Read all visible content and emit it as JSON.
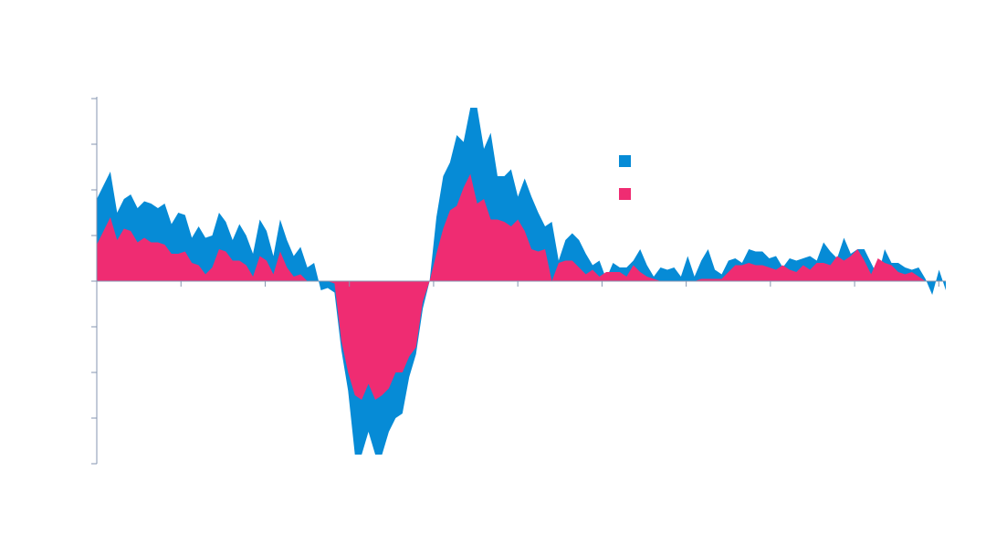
{
  "chart_data": {
    "type": "area",
    "title": "",
    "xlabel": "",
    "ylabel": "",
    "ylim": [
      -4,
      4
    ],
    "yticks": [
      -4,
      -3,
      -2,
      -1,
      0,
      1,
      2,
      3,
      4
    ],
    "xlim": [
      0,
      121
    ],
    "xticks": [
      12,
      24,
      36,
      48,
      60,
      72,
      84,
      96,
      108,
      120
    ],
    "grid": false,
    "legend_position": "top-right",
    "series": [
      {
        "name": "",
        "color": "#068bd6",
        "values": [
          1.8,
          2.1,
          2.4,
          1.5,
          1.8,
          1.9,
          1.6,
          1.75,
          1.7,
          1.6,
          1.7,
          1.25,
          1.5,
          1.45,
          0.95,
          1.2,
          0.95,
          1.0,
          1.5,
          1.3,
          0.9,
          1.25,
          1.0,
          0.6,
          1.35,
          1.1,
          0.55,
          1.35,
          0.9,
          0.55,
          0.75,
          0.3,
          0.4,
          -0.2,
          -0.15,
          -0.25,
          -1.5,
          -2.4,
          -3.8,
          -3.8,
          -3.3,
          -3.8,
          -3.8,
          -3.3,
          -3.0,
          -2.9,
          -2.1,
          -1.6,
          -0.6,
          0.0,
          1.4,
          2.3,
          2.6,
          3.2,
          3.05,
          3.8,
          3.8,
          2.9,
          3.25,
          2.3,
          2.3,
          2.45,
          1.85,
          2.25,
          1.85,
          1.5,
          1.2,
          1.3,
          0.45,
          0.9,
          1.05,
          0.9,
          0.6,
          0.35,
          0.45,
          0.05,
          0.4,
          0.3,
          0.3,
          0.45,
          0.7,
          0.35,
          0.1,
          0.3,
          0.25,
          0.3,
          0.1,
          0.55,
          0.1,
          0.45,
          0.7,
          0.25,
          0.15,
          0.45,
          0.5,
          0.4,
          0.7,
          0.65,
          0.65,
          0.5,
          0.55,
          0.3,
          0.5,
          0.45,
          0.5,
          0.55,
          0.45,
          0.85,
          0.65,
          0.5,
          0.95,
          0.6,
          0.7,
          0.7,
          0.4,
          0.1,
          0.7,
          0.4,
          0.4,
          0.3,
          0.25,
          0.3,
          0.05,
          -0.3,
          0.25,
          -0.2
        ]
      },
      {
        "name": "",
        "color": "#ef2c72",
        "values": [
          0.8,
          1.1,
          1.4,
          0.9,
          1.15,
          1.1,
          0.85,
          0.95,
          0.85,
          0.85,
          0.8,
          0.6,
          0.6,
          0.65,
          0.4,
          0.35,
          0.15,
          0.3,
          0.7,
          0.65,
          0.45,
          0.45,
          0.35,
          0.1,
          0.55,
          0.45,
          0.15,
          0.65,
          0.3,
          0.1,
          0.15,
          0.0,
          0.0,
          0.0,
          0.0,
          -0.05,
          -1.3,
          -2.0,
          -2.5,
          -2.6,
          -2.25,
          -2.6,
          -2.5,
          -2.35,
          -2.0,
          -2.0,
          -1.65,
          -1.45,
          -0.45,
          0.0,
          0.6,
          1.15,
          1.55,
          1.65,
          2.05,
          2.35,
          1.7,
          1.8,
          1.35,
          1.35,
          1.3,
          1.2,
          1.35,
          1.1,
          0.7,
          0.65,
          0.7,
          0.0,
          0.4,
          0.45,
          0.45,
          0.3,
          0.15,
          0.25,
          0.1,
          0.2,
          0.2,
          0.2,
          0.1,
          0.35,
          0.2,
          0.1,
          0.05,
          0.0,
          0.0,
          0.0,
          0.0,
          0.0,
          0.0,
          0.05,
          0.05,
          0.05,
          0.05,
          0.2,
          0.35,
          0.35,
          0.4,
          0.35,
          0.35,
          0.3,
          0.25,
          0.35,
          0.25,
          0.2,
          0.35,
          0.25,
          0.4,
          0.4,
          0.35,
          0.55,
          0.45,
          0.55,
          0.7,
          0.45,
          0.15,
          0.5,
          0.4,
          0.35,
          0.2,
          0.15,
          0.2,
          0.1,
          0.0,
          0.0,
          0.0,
          0.0
        ]
      }
    ]
  }
}
